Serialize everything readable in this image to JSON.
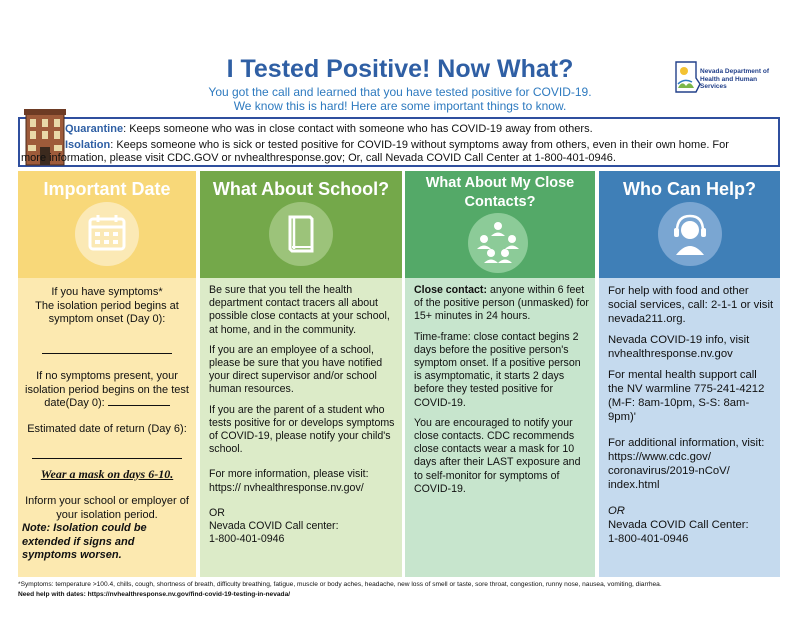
{
  "header": {
    "title": "I Tested Positive! Now What?",
    "subtitle_line1": "You got the call and learned that you have tested positive for COVID-19.",
    "subtitle_line2": "We know this is hard! Here are some important things to know.",
    "logo_line1": "Nevada Department of",
    "logo_line2": "Health and Human Services"
  },
  "definitions": {
    "quarantine_key": "Quarantine",
    "quarantine_text": ": Keeps someone who was in close contact with someone who has COVID-19 away from others.",
    "isolation_key": "Isolation",
    "isolation_text": ": Keeps someone who is sick or tested positive for COVID-19 without symptoms away from others, even in their own home. For",
    "isolation_text2": "more information, please visit CDC.GOV or nvhealthresponse.gov; Or, call Nevada COVID Call Center at 1-800-401-0946."
  },
  "columns": {
    "date": {
      "title": "Important Date",
      "line1": "If you have symptoms*",
      "line2": "The isolation period begins at symptom onset (Day 0):",
      "line3": "If no symptoms present, your isolation period begins on the test date(Day 0):",
      "line4": "Estimated date of return (Day 6):",
      "mask": "Wear a mask on days 6-10.",
      "inform": "Inform your school or employer of your isolation period.",
      "note": "Note: Isolation could be extended if signs and symptoms worsen."
    },
    "school": {
      "title": "What About School?",
      "p1": "Be sure that you tell the health department contact tracers all about possible close contacts at your school, at home, and in the community.",
      "p2": "If you are an employee of a school, please be sure that you have notified your direct supervisor and/or school human resources.",
      "p3": "If you are the parent of a student who tests positive for or develops symptoms of COVID-19, please notify your child's school.",
      "p4a": "For more information, please visit: https:// nvhealthresponse.nv.gov/",
      "p5a": "OR",
      "p5b": "Nevada COVID Call center:",
      "p5c": "1-800-401-0946"
    },
    "contacts": {
      "title_line1": "What About My Close",
      "title_line2": "Contacts?",
      "p1_key": "Close contact:",
      "p1": " anyone within 6 feet of the positive person (unmasked) for 15+ minutes in 24 hours.",
      "p2": "Time-frame: close contact begins 2 days before the positive person's symptom onset. If a positive person is asymptomatic, it starts 2 days before they tested positive for COVID-19.",
      "p3": "You are encouraged to notify your close contacts.  CDC recommends close contacts wear a mask for 10 days after their LAST exposure and to self-monitor for symptoms of COVID-19."
    },
    "help": {
      "title": "Who Can Help?",
      "p1": "For help with food and other social services, call: 2-1-1 or visit nevada211.org.",
      "p2": "Nevada COVID-19 info, visit nvhealthresponse.nv.gov",
      "p3": "For mental health support call the NV warmline 775-241-4212 (M-F: 8am-10pm, S-S: 8am-9pm)'",
      "p4": "For additional information, visit: https://www.cdc.gov/ coronavirus/2019-nCoV/ index.html",
      "p5a": "OR",
      "p5b": "Nevada COVID Call Center:",
      "p5c": "1-800-401-0946"
    }
  },
  "footer": {
    "symptoms": "*Symptoms: temperature >100.4, chills, cough, shortness of breath, difficulty breathing, fatigue, muscle or body aches, headache, new loss of smell or taste, sore throat, congestion, runny nose, nausea, vomiting, diarrhea.",
    "help_dates": "Need help with dates: https://nvhealthresponse.nv.gov/find-covid-19-testing-in-nevada/"
  },
  "colors": {
    "title_blue": "#2f5fa4",
    "yellow": "#f8d879",
    "olive": "#74a84a",
    "green": "#54a968",
    "blue": "#3f7fb7"
  }
}
